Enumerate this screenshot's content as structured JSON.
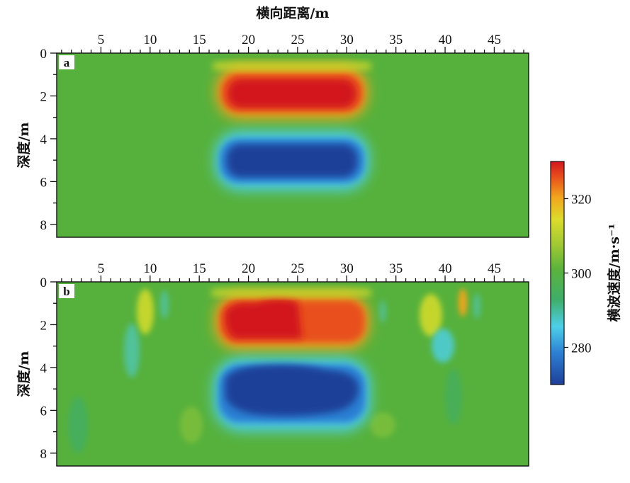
{
  "chart_data": {
    "type": "heatmap",
    "xlabel": "横向距离/m",
    "ylabel": "深度/m",
    "colorbar_label": "横波速度/m·s⁻¹",
    "xlim": [
      0.5,
      48.5
    ],
    "ylim": [
      0,
      8.6
    ],
    "x_ticks": [
      5,
      10,
      15,
      20,
      25,
      30,
      35,
      40,
      45
    ],
    "y_ticks": [
      0,
      2,
      4,
      6,
      8
    ],
    "colorbar_range": [
      270,
      330
    ],
    "colorbar_ticks": [
      280,
      300,
      320
    ],
    "background_value": 302,
    "colors": [
      "#1f3f98",
      "#2c7fd3",
      "#4dd0e8",
      "#4fb64a",
      "#86c33a",
      "#d8dd2a",
      "#f2a51d",
      "#e8501c",
      "#d2171f"
    ],
    "panels": [
      {
        "label": "a",
        "anomalies": [
          {
            "kind": "high",
            "x_range": [
              17.5,
              32
            ],
            "depth_range": [
              0.8,
              2.8
            ],
            "value": 330
          },
          {
            "kind": "low",
            "x_range": [
              17.5,
              32
            ],
            "depth_range": [
              4.0,
              6.0
            ],
            "value": 270
          }
        ]
      },
      {
        "label": "b",
        "anomalies": [
          {
            "kind": "high",
            "x_range": [
              17.5,
              32
            ],
            "depth_range": [
              0.7,
              2.9
            ],
            "value": 330
          },
          {
            "kind": "low",
            "x_range": [
              17.5,
              32
            ],
            "depth_range": [
              3.9,
              6.4
            ],
            "value": 270
          },
          {
            "kind": "high",
            "x_range": [
              38,
              40
            ],
            "depth_range": [
              1.0,
              2.4
            ],
            "value": 312
          },
          {
            "kind": "high",
            "x_range": [
              41.5,
              42.5
            ],
            "depth_range": [
              0.3,
              1.5
            ],
            "value": 318
          },
          {
            "kind": "high",
            "x_range": [
              9.5,
              11
            ],
            "depth_range": [
              0.4,
              2.0
            ],
            "value": 310
          },
          {
            "kind": "low",
            "x_range": [
              7.5,
              9.5
            ],
            "depth_range": [
              2.6,
              4.8
            ],
            "value": 293
          },
          {
            "kind": "low",
            "x_range": [
              38.5,
              40.5
            ],
            "depth_range": [
              2.8,
              4.4
            ],
            "value": 288
          }
        ]
      }
    ]
  }
}
